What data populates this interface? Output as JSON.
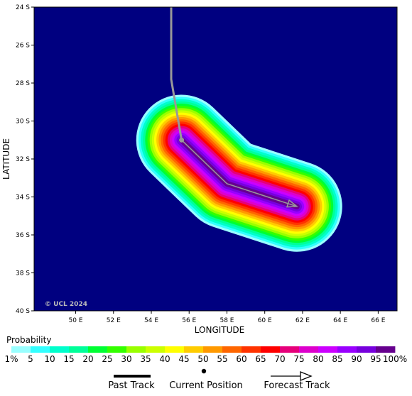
{
  "map": {
    "x_axis_title": "LONGITUDE",
    "y_axis_title": "LATITUDE",
    "lon_ticks": [
      "50 E",
      "52 E",
      "54 E",
      "56 E",
      "58 E",
      "60 E",
      "62 E",
      "64 E",
      "66 E"
    ],
    "lat_ticks": [
      "24 S",
      "26 S",
      "28 S",
      "30 S",
      "32 S",
      "34 S",
      "36 S",
      "38 S",
      "40 S"
    ],
    "lon_range": [
      47.8,
      67.0
    ],
    "lat_range": [
      24.0,
      40.0
    ],
    "background_color": "#000080",
    "watermark": "© UCL 2024",
    "past_track": [
      [
        55.05,
        24.0
      ],
      [
        55.05,
        27.8
      ],
      [
        55.6,
        31.0
      ]
    ],
    "current_position": [
      55.6,
      31.0
    ],
    "forecast_track": [
      [
        55.6,
        31.0
      ],
      [
        58.0,
        33.3
      ],
      [
        61.7,
        34.5
      ]
    ],
    "track_color": "#999999"
  },
  "legend": {
    "title": "Probability",
    "labels": [
      "1%",
      "5",
      "10",
      "15",
      "20",
      "25",
      "30",
      "35",
      "40",
      "45",
      "50",
      "55",
      "60",
      "65",
      "70",
      "75",
      "80",
      "85",
      "90",
      "95",
      "100%"
    ],
    "colors": [
      "#99ffff",
      "#33ffff",
      "#00ffcc",
      "#00ff99",
      "#00ff33",
      "#33ff00",
      "#99ff00",
      "#ccff00",
      "#ffff00",
      "#ffcc00",
      "#ff9900",
      "#ff6600",
      "#ff3300",
      "#ff0000",
      "#e6007a",
      "#dd00cc",
      "#cc00ff",
      "#9900ff",
      "#7700dd",
      "#66008e"
    ]
  },
  "track_legend": {
    "past_label": "Past Track",
    "current_label": "Current Position",
    "forecast_label": "Forecast Track"
  }
}
